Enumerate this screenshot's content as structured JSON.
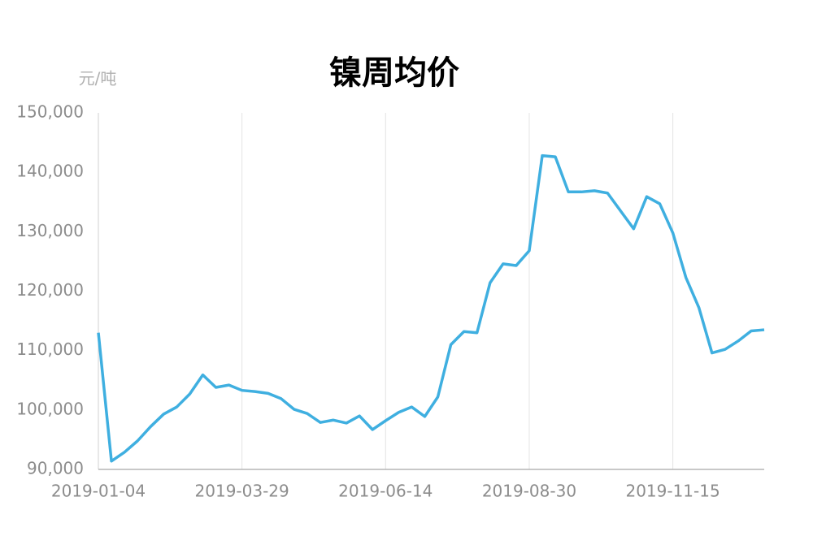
{
  "chart_data": {
    "type": "line",
    "title": "镍周均价",
    "y_axis_label": "元/吨",
    "categories": [
      "2019-01-04",
      null,
      null,
      null,
      null,
      null,
      null,
      null,
      null,
      null,
      null,
      "2019-03-29",
      null,
      null,
      null,
      null,
      null,
      null,
      null,
      null,
      null,
      null,
      "2019-06-14",
      null,
      null,
      null,
      null,
      null,
      null,
      null,
      null,
      null,
      null,
      "2019-08-30",
      null,
      null,
      null,
      null,
      null,
      null,
      null,
      null,
      null,
      null,
      "2019-11-15",
      null,
      null,
      null,
      null,
      null,
      null,
      null
    ],
    "series": [
      {
        "name": "镍周均价",
        "color": "#3fafe0",
        "values": [
          113000,
          91400,
          92900,
          94800,
          97200,
          99300,
          100500,
          102700,
          105900,
          103800,
          104200,
          103300,
          103100,
          102800,
          101900,
          100100,
          99400,
          97900,
          98300,
          97800,
          99000,
          96700,
          98200,
          99600,
          100500,
          98900,
          102200,
          111000,
          113200,
          113000,
          121400,
          124600,
          124300,
          126800,
          142800,
          142600,
          136700,
          136700,
          136900,
          136500,
          133500,
          130500,
          135900,
          134700,
          129800,
          122300,
          117200,
          109600,
          110200,
          111600,
          113300,
          113500
        ]
      }
    ],
    "ylim": [
      90000,
      150000
    ],
    "yticks": [
      {
        "value": 90000,
        "label": "90,000"
      },
      {
        "value": 100000,
        "label": "100,000"
      },
      {
        "value": 110000,
        "label": "110,000"
      },
      {
        "value": 120000,
        "label": "120,000"
      },
      {
        "value": 130000,
        "label": "130,000"
      },
      {
        "value": 140000,
        "label": "140,000"
      },
      {
        "value": 150000,
        "label": "150,000"
      }
    ],
    "grid": true
  }
}
